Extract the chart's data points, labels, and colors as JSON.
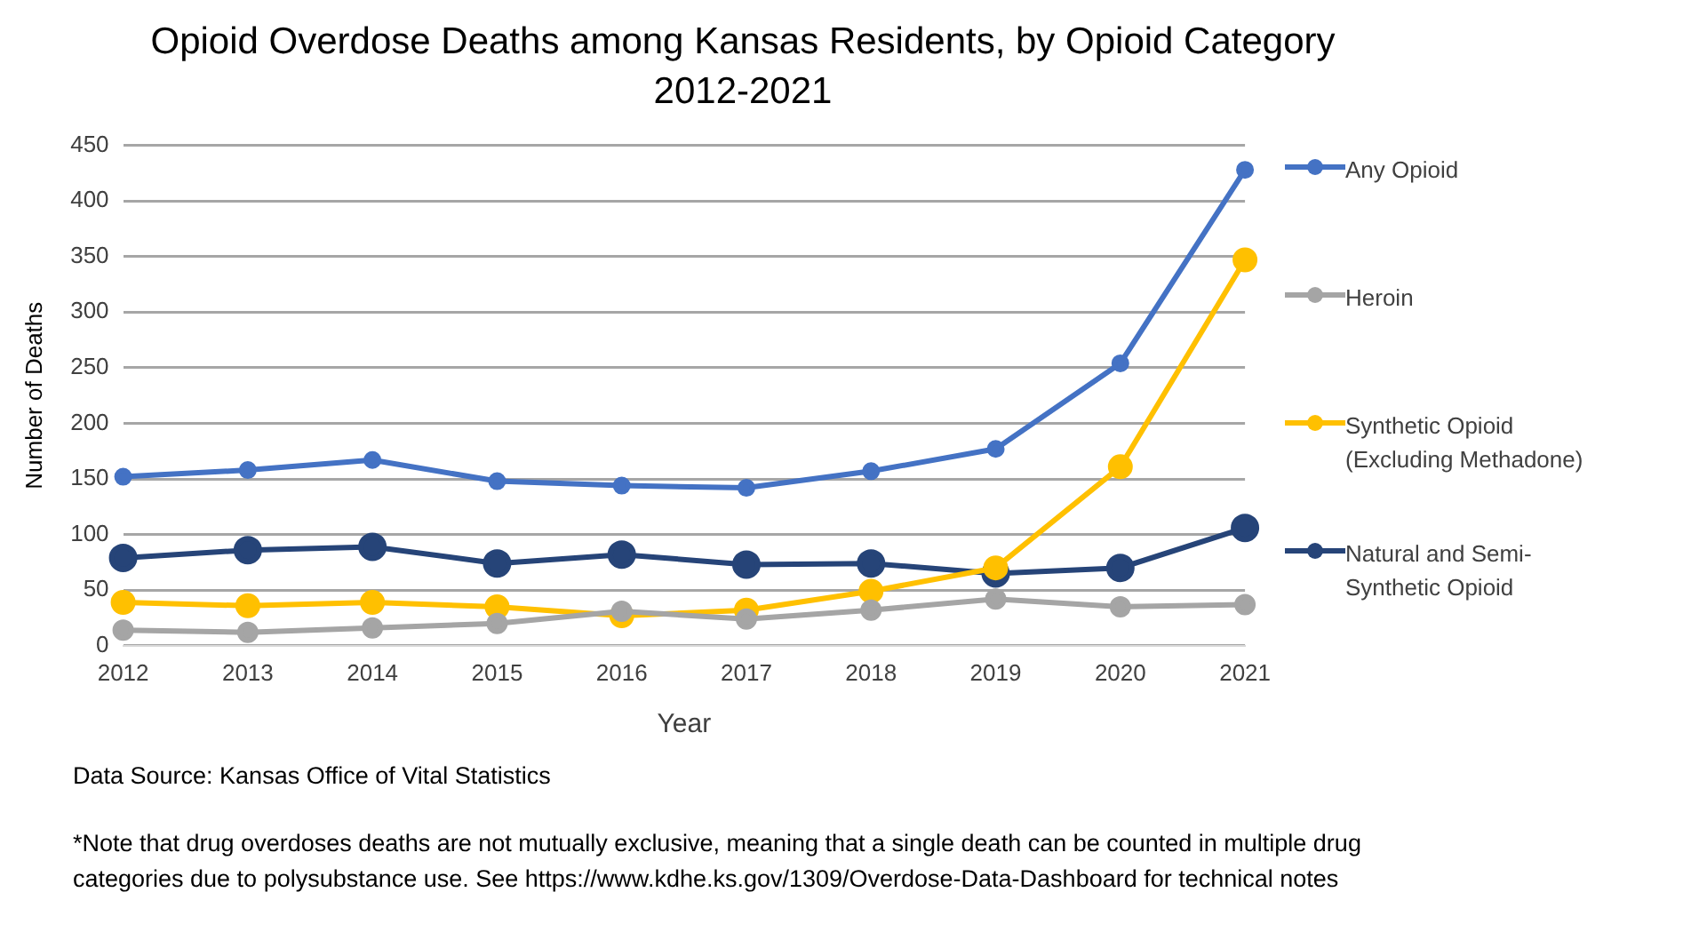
{
  "chart_data": {
    "type": "line",
    "title": "Opioid Overdose Deaths among Kansas Residents, by Opioid Category 2012-2021",
    "xlabel": "Year",
    "ylabel": "Number of Deaths",
    "categories": [
      "2012",
      "2013",
      "2014",
      "2015",
      "2016",
      "2017",
      "2018",
      "2019",
      "2020",
      "2021"
    ],
    "series": [
      {
        "name": "Any Opioid",
        "color": "#4472c4",
        "values": [
          152,
          158,
          167,
          148,
          144,
          142,
          157,
          177,
          254,
          428
        ]
      },
      {
        "name": "Heroin",
        "color": "#a5a5a5",
        "values": [
          14,
          12,
          16,
          20,
          31,
          24,
          32,
          42,
          35,
          37
        ]
      },
      {
        "name": "Synthetic Opioid (Excluding Methadone)",
        "color": "#ffc000",
        "values": [
          39,
          36,
          39,
          35,
          27,
          32,
          49,
          70,
          161,
          347
        ]
      },
      {
        "name": "Natural and Semi-Synthetic Opioid",
        "color": "#264478",
        "values": [
          79,
          86,
          89,
          74,
          82,
          73,
          74,
          65,
          70,
          106
        ]
      }
    ],
    "ylim": [
      0,
      450
    ],
    "yticks": [
      0,
      50,
      100,
      150,
      200,
      250,
      300,
      350,
      400,
      450
    ],
    "grid": "y",
    "legend": "right",
    "marker": "circle",
    "line_style": "solid",
    "annotations": [
      "Data Source: Kansas Office of Vital Statistics",
      "*Note that drug overdoses deaths are not mutually exclusive, meaning that a single death can be counted in multiple drug categories due to polysubstance use. See https://www.kdhe.ks.gov/1309/Overdose-Data-Dashboard for technical notes"
    ]
  }
}
